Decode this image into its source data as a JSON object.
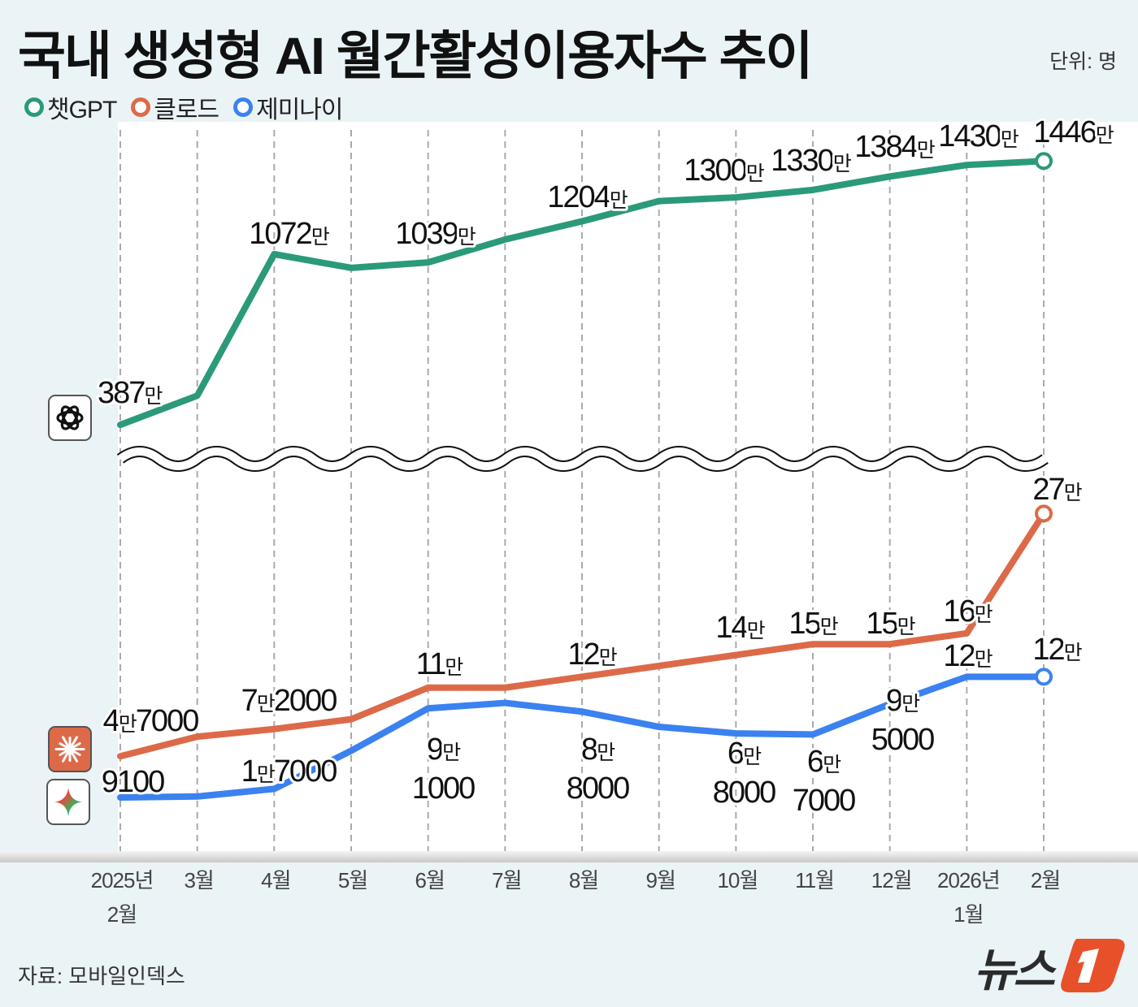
{
  "title": "국내 생성형 AI 월간활성이용자수 추이",
  "unit_label": "단위: 명",
  "source": "자료: 모바일인덱스",
  "logo_text": "뉴스1",
  "colors": {
    "chatgpt": "#2a9a7a",
    "claude": "#dc6a48",
    "gemini": "#3b82f0",
    "background": "#eaf3f6",
    "plot": "#ffffff",
    "logo": "#e8502a"
  },
  "legend": [
    {
      "name": "챗GPT",
      "color": "#2a9a7a"
    },
    {
      "name": "클로드",
      "color": "#dc6a48"
    },
    {
      "name": "제미나이",
      "color": "#3b82f0"
    }
  ],
  "icons": {
    "chatgpt": "openai-logo-icon",
    "claude": "claude-logo-icon",
    "gemini": "gemini-logo-icon"
  },
  "chart_data": {
    "type": "line",
    "broken_axis": true,
    "unit": "명",
    "grid": "vertical dashed",
    "legend_placement": "top-left",
    "categories": [
      "2025년 2월",
      "3월",
      "4월",
      "5월",
      "6월",
      "7월",
      "8월",
      "9월",
      "10월",
      "11월",
      "12월",
      "2026년 1월",
      "2월"
    ],
    "tick_labels": [
      [
        "2025년",
        "2월"
      ],
      [
        "3월"
      ],
      [
        "4월"
      ],
      [
        "5월"
      ],
      [
        "6월"
      ],
      [
        "7월"
      ],
      [
        "8월"
      ],
      [
        "9월"
      ],
      [
        "10월"
      ],
      [
        "11월"
      ],
      [
        "12월"
      ],
      [
        "2026년",
        "1월"
      ],
      [
        "2월"
      ]
    ],
    "series": [
      {
        "name": "챗GPT",
        "color": "#2a9a7a",
        "values": [
          3870000,
          5040000,
          10720000,
          10170000,
          10390000,
          11310000,
          12040000,
          12850000,
          13000000,
          13300000,
          13840000,
          14300000,
          14460000
        ],
        "labels": [
          "387만",
          null,
          "1072만",
          null,
          "1039만",
          null,
          "1204만",
          null,
          "1300만",
          "1330만",
          "1384만",
          "1430만",
          "1446만"
        ]
      },
      {
        "name": "클로드",
        "color": "#dc6a48",
        "values": [
          47000,
          65000,
          72000,
          81000,
          110000,
          110000,
          120000,
          130000,
          140000,
          150000,
          150000,
          160000,
          270000
        ],
        "labels": [
          "4만7000",
          null,
          "7만2000",
          null,
          "11만",
          null,
          "12만",
          null,
          "14만",
          "15만",
          "15만",
          "16만",
          "27만"
        ]
      },
      {
        "name": "제미나이",
        "color": "#3b82f0",
        "values": [
          9100,
          10000,
          17000,
          52000,
          91000,
          96000,
          88000,
          74000,
          68000,
          67000,
          95000,
          120000,
          120000
        ],
        "labels": [
          "9100",
          null,
          "1만7000",
          null,
          "9만1000",
          null,
          "8만8000",
          null,
          "6만8000",
          "6만7000",
          "9만5000",
          "12만",
          "12만"
        ]
      }
    ]
  }
}
